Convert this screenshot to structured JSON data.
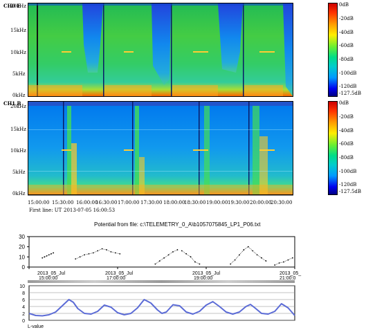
{
  "panels": {
    "e": {
      "title": "CH0 E",
      "freq_labels": [
        "20kHz",
        "15kHz",
        "10kHz",
        "5kHz",
        "0kHz"
      ],
      "freq_values": [
        20,
        15,
        10,
        5,
        0
      ]
    },
    "b": {
      "title": "CH1 B",
      "freq_labels": [
        "20kHz",
        "15kHz",
        "10kHz",
        "5kHz",
        "0kHz"
      ],
      "freq_values": [
        20,
        15,
        10,
        5,
        0
      ]
    }
  },
  "colorbar": {
    "labels": [
      "0dB",
      "-20dB",
      "-40dB",
      "-60dB",
      "-80dB",
      "-100dB",
      "-120dB",
      "-127.5dB"
    ],
    "colors": [
      "#cc0000",
      "#ff3300",
      "#ff9900",
      "#ffee00",
      "#66ee33",
      "#00cccc",
      "#0066ff",
      "#000080"
    ]
  },
  "time_axis": {
    "labels": [
      "15:00:00",
      "15:30:00",
      "16:00:00",
      "16:30:00",
      "17:00:00",
      "17:30:00",
      "18:00:00",
      "18:30:00",
      "19:00:00",
      "19:30:00",
      "20:00:00",
      "20:30:00"
    ]
  },
  "first_line": {
    "label": "First line: UT",
    "value": "2013-07-05 16:00:53"
  },
  "chart_data": [
    {
      "type": "heatmap",
      "title": "CH0 E",
      "ylabel": "",
      "ylim": [
        0,
        20
      ],
      "y_ticks": [
        "20kHz",
        "15kHz",
        "10kHz",
        "5kHz",
        "0kHz"
      ],
      "x_ticks": [
        "15:00:00",
        "15:30:00",
        "16:00:00",
        "16:30:00",
        "17:00:00",
        "17:30:00",
        "18:00:00",
        "18:30:00",
        "19:00:00",
        "19:30:00",
        "20:00:00",
        "20:30:00"
      ],
      "colorbar": [
        "0dB",
        "-20dB",
        "-40dB",
        "-60dB",
        "-80dB",
        "-100dB",
        "-120dB",
        "-127.5dB"
      ]
    },
    {
      "type": "heatmap",
      "title": "CH1 B",
      "ylabel": "",
      "ylim": [
        0,
        20
      ],
      "y_ticks": [
        "20kHz",
        "15kHz",
        "10kHz",
        "5kHz",
        "0kHz"
      ],
      "x_ticks": [
        "15:00:00",
        "15:30:00",
        "16:00:00",
        "16:30:00",
        "17:00:00",
        "17:30:00",
        "18:00:00",
        "18:30:00",
        "19:00:00",
        "19:30:00",
        "20:00:00",
        "20:30:00"
      ],
      "colorbar": [
        "0dB",
        "-20dB",
        "-40dB",
        "-60dB",
        "-80dB",
        "-100dB",
        "-120dB",
        "-127.5dB"
      ]
    },
    {
      "type": "scatter",
      "title": "Potential from file: c:\\TELEMETRY_0_A\\b1057075845_LP1_P06.txt",
      "ylim": [
        0,
        30
      ],
      "y_ticks": [
        0,
        10,
        20,
        30
      ],
      "x_range": [
        "2013-07-05 15:00",
        "2013-07-05 21:00"
      ],
      "x_ticks": [
        {
          "line1": "2013_05_Jul",
          "line2": "15:00:00"
        },
        {
          "line1": "2013_05_Jul",
          "line2": "17:00:00"
        },
        {
          "line1": "2013_05_Jul",
          "line2": "19:00:00"
        },
        {
          "line1": "2013_05_",
          "line2": "21:00:0"
        }
      ],
      "segments": [
        {
          "x_hours": [
            15.3,
            15.35,
            15.4,
            15.45,
            15.5,
            15.55
          ],
          "y": [
            9,
            10,
            11,
            12,
            13,
            14
          ]
        },
        {
          "x_hours": [
            16.05,
            16.15,
            16.25,
            16.35,
            16.45,
            16.55,
            16.65,
            16.75,
            16.85,
            16.95,
            17.05
          ],
          "y": [
            8,
            10,
            12,
            13,
            14,
            16,
            18,
            17,
            15,
            14,
            13
          ]
        },
        {
          "x_hours": [
            17.85,
            17.95,
            18.05,
            18.15,
            18.25,
            18.35
          ],
          "y": [
            3,
            6,
            9,
            12,
            15,
            17
          ]
        },
        {
          "x_hours": [
            18.45,
            18.55,
            18.65,
            18.75,
            18.85
          ],
          "y": [
            16,
            13,
            10,
            5,
            3
          ]
        },
        {
          "x_hours": [
            19.55,
            19.65,
            19.75,
            19.85,
            19.95,
            20.05,
            20.15,
            20.25,
            20.35
          ],
          "y": [
            3,
            7,
            12,
            17,
            20,
            16,
            12,
            9,
            6
          ]
        },
        {
          "x_hours": [
            20.55,
            20.65,
            20.75,
            20.85,
            20.95
          ],
          "y": [
            2,
            4,
            5,
            7,
            9
          ]
        }
      ]
    },
    {
      "type": "line",
      "title": "",
      "xlabel": "L-value",
      "ylim": [
        0,
        10
      ],
      "y_ticks": [
        0,
        2,
        4,
        6,
        8,
        10
      ],
      "x_range_hours": [
        15,
        21
      ],
      "series": [
        {
          "x_hours": [
            15.0,
            15.15,
            15.3,
            15.45,
            15.6,
            15.75,
            15.9,
            16.0,
            16.1,
            16.25,
            16.4,
            16.55,
            16.7,
            16.85,
            17.0,
            17.15,
            17.3,
            17.45,
            17.6,
            17.75,
            17.9,
            18.0,
            18.1,
            18.25,
            18.4,
            18.55,
            18.7,
            18.85,
            19.0,
            19.15,
            19.3,
            19.45,
            19.6,
            19.75,
            19.9,
            20.0,
            20.1,
            20.25,
            20.4,
            20.55,
            20.7,
            20.85,
            21.0
          ],
          "values": [
            2.0,
            1.4,
            1.3,
            1.6,
            2.4,
            4.2,
            6.0,
            5.2,
            3.4,
            2.0,
            1.8,
            2.6,
            4.4,
            3.8,
            2.2,
            1.6,
            2.0,
            3.6,
            6.0,
            5.0,
            3.0,
            2.0,
            2.4,
            4.5,
            4.2,
            2.4,
            1.8,
            2.6,
            4.4,
            5.4,
            4.0,
            2.4,
            1.8,
            2.4,
            4.0,
            4.6,
            3.6,
            2.0,
            1.8,
            2.6,
            4.8,
            3.6,
            1.4
          ],
          "color": "#5b6bd6"
        }
      ]
    }
  ]
}
